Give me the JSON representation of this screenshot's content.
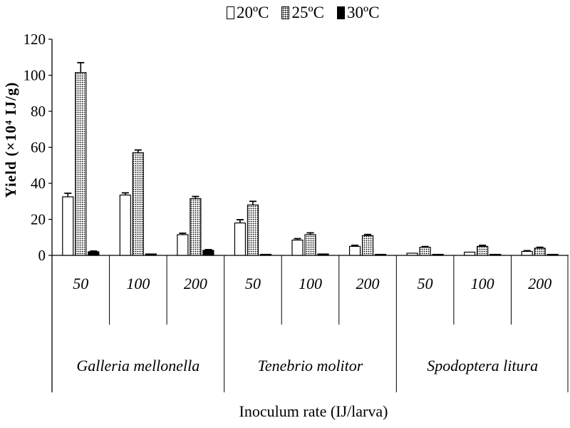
{
  "chart_data": {
    "type": "bar",
    "title": "",
    "ylabel": "Yield (×10⁴ IJ/g)",
    "xlabel": "Inoculum rate  (IJ/larva)",
    "ylim": [
      0,
      120
    ],
    "yticks": [
      0,
      20,
      40,
      60,
      80,
      100,
      120
    ],
    "legend_position": "top-center",
    "groups": [
      {
        "label": "Galleria mellonella",
        "categories": [
          "50",
          "100",
          "200"
        ]
      },
      {
        "label": "Tenebrio molitor",
        "categories": [
          "50",
          "100",
          "200"
        ]
      },
      {
        "label": "Spodoptera litura",
        "categories": [
          "50",
          "100",
          "200"
        ]
      }
    ],
    "series": [
      {
        "name": "20ºC",
        "pattern": "white",
        "values": [
          32.5,
          33.5,
          11.5,
          18.0,
          8.5,
          5.0,
          1.2,
          1.8,
          2.2
        ],
        "errors": [
          2.0,
          1.2,
          0.8,
          1.8,
          0.8,
          0.6,
          0.3,
          0.3,
          0.4
        ]
      },
      {
        "name": "25ºC",
        "pattern": "dotted",
        "values": [
          101.5,
          57.0,
          31.5,
          28.0,
          11.5,
          11.0,
          4.5,
          5.0,
          4.0
        ],
        "errors": [
          5.5,
          1.5,
          1.2,
          2.0,
          1.0,
          0.6,
          0.4,
          0.6,
          0.5
        ],
        "color": "#000000"
      },
      {
        "name": "30ºC",
        "pattern": "black",
        "values": [
          2.0,
          0.8,
          2.8,
          0.2,
          0.8,
          0.2,
          0.1,
          0.1,
          0.1
        ],
        "errors": [
          0.4,
          0.2,
          0.4,
          0,
          0.2,
          0,
          0,
          0,
          0
        ],
        "color": "#000000"
      }
    ]
  }
}
